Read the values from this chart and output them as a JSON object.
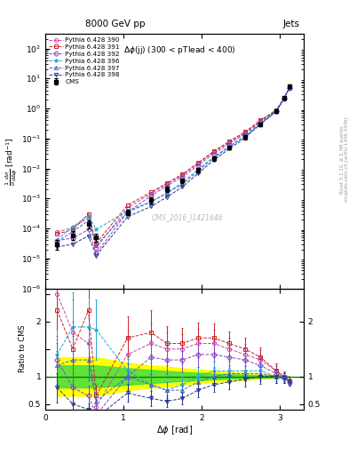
{
  "title": "8000 GeV pp",
  "title_right": "Jets",
  "annotation": "Δφ(jj) (300 < pTlead < 400)",
  "watermark": "CMS_2016_I1421646",
  "ylabel_main": "$\\frac{1}{\\sigma}\\frac{d\\sigma}{d\\Delta\\phi}$ [rad$^{-1}$]",
  "ylabel_ratio": "Ratio to CMS",
  "xlabel": "$\\Delta\\phi$ [rad]",
  "right_label": "mcplots.cern.ch [arXiv:1306.3436]",
  "right_label2": "Rivet 3.1.10, ≥ 2.3M events",
  "xlim": [
    0.0,
    3.3
  ],
  "ylim_main": [
    1e-06,
    300
  ],
  "ylim_ratio": [
    0.4,
    2.6
  ],
  "cms_x": [
    0.15,
    0.35,
    0.55,
    0.65,
    1.05,
    1.35,
    1.55,
    1.75,
    1.95,
    2.15,
    2.35,
    2.55,
    2.75,
    2.95,
    3.05,
    3.12
  ],
  "cms_y": [
    3e-05,
    6e-05,
    0.00014,
    5e-05,
    0.00035,
    0.0009,
    0.002,
    0.004,
    0.009,
    0.022,
    0.05,
    0.11,
    0.3,
    0.8,
    2.2,
    5.5
  ],
  "cms_yerr": [
    1e-05,
    2e-05,
    4e-05,
    1.5e-05,
    8e-05,
    0.0002,
    0.0004,
    0.0007,
    0.0015,
    0.0035,
    0.007,
    0.015,
    0.04,
    0.1,
    0.2,
    0.4
  ],
  "sys_x": [
    0.15,
    0.35,
    0.55,
    0.65,
    1.05,
    1.35,
    1.55,
    1.75,
    1.95,
    2.15,
    2.35,
    2.55,
    2.75,
    2.95,
    3.05,
    3.12
  ],
  "sys_frac_yellow": [
    0.35,
    0.35,
    0.35,
    0.35,
    0.25,
    0.2,
    0.18,
    0.15,
    0.13,
    0.1,
    0.08,
    0.06,
    0.04,
    0.03,
    0.02,
    0.01
  ],
  "sys_frac_green": [
    0.2,
    0.2,
    0.2,
    0.2,
    0.15,
    0.12,
    0.1,
    0.08,
    0.07,
    0.05,
    0.04,
    0.03,
    0.02,
    0.015,
    0.01,
    0.005
  ],
  "series": [
    {
      "label": "Pythia 6.428 390",
      "color": "#cc44aa",
      "marker": "o",
      "ratio_scale": [
        2.5,
        1.8,
        1.6,
        0.45,
        1.4,
        1.6,
        1.5,
        1.5,
        1.6,
        1.6,
        1.5,
        1.4,
        1.3,
        1.1,
        1.0,
        0.92
      ]
    },
    {
      "label": "Pythia 6.428 391",
      "color": "#cc2222",
      "marker": "s",
      "ratio_scale": [
        2.2,
        1.5,
        2.2,
        0.65,
        1.7,
        1.8,
        1.6,
        1.6,
        1.7,
        1.7,
        1.6,
        1.5,
        1.35,
        1.1,
        1.0,
        0.92
      ]
    },
    {
      "label": "Pythia 6.428 392",
      "color": "#8844cc",
      "marker": "D",
      "ratio_scale": [
        1.3,
        0.8,
        0.65,
        0.3,
        1.0,
        1.35,
        1.3,
        1.3,
        1.4,
        1.4,
        1.35,
        1.3,
        1.2,
        1.05,
        0.98,
        0.9
      ]
    },
    {
      "label": "Pythia 6.428 396",
      "color": "#22aacc",
      "marker": "*",
      "ratio_scale": [
        1.4,
        1.9,
        1.9,
        1.85,
        1.1,
        0.85,
        0.75,
        0.85,
        1.0,
        1.1,
        1.1,
        1.1,
        1.1,
        1.0,
        0.97,
        0.9
      ]
    },
    {
      "label": "Pythia 6.428 397",
      "color": "#4466cc",
      "marker": "^",
      "ratio_scale": [
        1.2,
        1.3,
        1.3,
        0.55,
        1.0,
        0.85,
        0.75,
        0.75,
        0.9,
        1.0,
        1.05,
        1.05,
        1.05,
        1.0,
        0.97,
        0.9
      ]
    },
    {
      "label": "Pythia 6.428 398",
      "color": "#223388",
      "marker": "v",
      "ratio_scale": [
        0.8,
        0.5,
        0.4,
        0.25,
        0.7,
        0.6,
        0.55,
        0.6,
        0.75,
        0.85,
        0.9,
        0.95,
        1.0,
        1.0,
        0.97,
        0.9
      ]
    }
  ]
}
